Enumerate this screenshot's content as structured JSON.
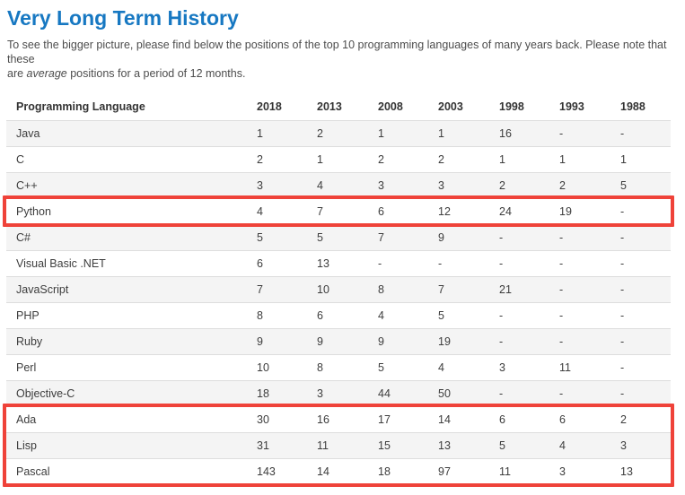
{
  "page": {
    "title": "Very Long Term History",
    "intro": {
      "line1": "To see the bigger picture, please find below the positions of the top 10 programming languages of many years back. Please note that these",
      "line2_before": "are ",
      "line2_italic": "average",
      "line2_after": " positions for a period of 12 months."
    }
  },
  "colors": {
    "title_blue": "#1778c2",
    "highlight_red": "#ef4239",
    "stripe_gray": "#f4f4f4",
    "row_border": "#dddddd"
  },
  "table": {
    "header": [
      "Programming Language",
      "2018",
      "2013",
      "2008",
      "2003",
      "1998",
      "1993",
      "1988"
    ],
    "rows": [
      {
        "language": "Java",
        "positions": [
          "1",
          "2",
          "1",
          "1",
          "16",
          "-",
          "-"
        ]
      },
      {
        "language": "C",
        "positions": [
          "2",
          "1",
          "2",
          "2",
          "1",
          "1",
          "1"
        ]
      },
      {
        "language": "C++",
        "positions": [
          "3",
          "4",
          "3",
          "3",
          "2",
          "2",
          "5"
        ]
      },
      {
        "language": "Python",
        "positions": [
          "4",
          "7",
          "6",
          "12",
          "24",
          "19",
          "-"
        ]
      },
      {
        "language": "C#",
        "positions": [
          "5",
          "5",
          "7",
          "9",
          "-",
          "-",
          "-"
        ]
      },
      {
        "language": "Visual Basic .NET",
        "positions": [
          "6",
          "13",
          "-",
          "-",
          "-",
          "-",
          "-"
        ]
      },
      {
        "language": "JavaScript",
        "positions": [
          "7",
          "10",
          "8",
          "7",
          "21",
          "-",
          "-"
        ]
      },
      {
        "language": "PHP",
        "positions": [
          "8",
          "6",
          "4",
          "5",
          "-",
          "-",
          "-"
        ]
      },
      {
        "language": "Ruby",
        "positions": [
          "9",
          "9",
          "9",
          "19",
          "-",
          "-",
          "-"
        ]
      },
      {
        "language": "Perl",
        "positions": [
          "10",
          "8",
          "5",
          "4",
          "3",
          "11",
          "-"
        ]
      },
      {
        "language": "Objective-C",
        "positions": [
          "18",
          "3",
          "44",
          "50",
          "-",
          "-",
          "-"
        ]
      },
      {
        "language": "Ada",
        "positions": [
          "30",
          "16",
          "17",
          "14",
          "6",
          "6",
          "2"
        ]
      },
      {
        "language": "Lisp",
        "positions": [
          "31",
          "11",
          "15",
          "13",
          "5",
          "4",
          "3"
        ]
      },
      {
        "language": "Pascal",
        "positions": [
          "143",
          "14",
          "18",
          "97",
          "11",
          "3",
          "13"
        ]
      }
    ],
    "highlight_groups": [
      [
        "Python"
      ],
      [
        "Ada",
        "Lisp",
        "Pascal"
      ]
    ]
  }
}
